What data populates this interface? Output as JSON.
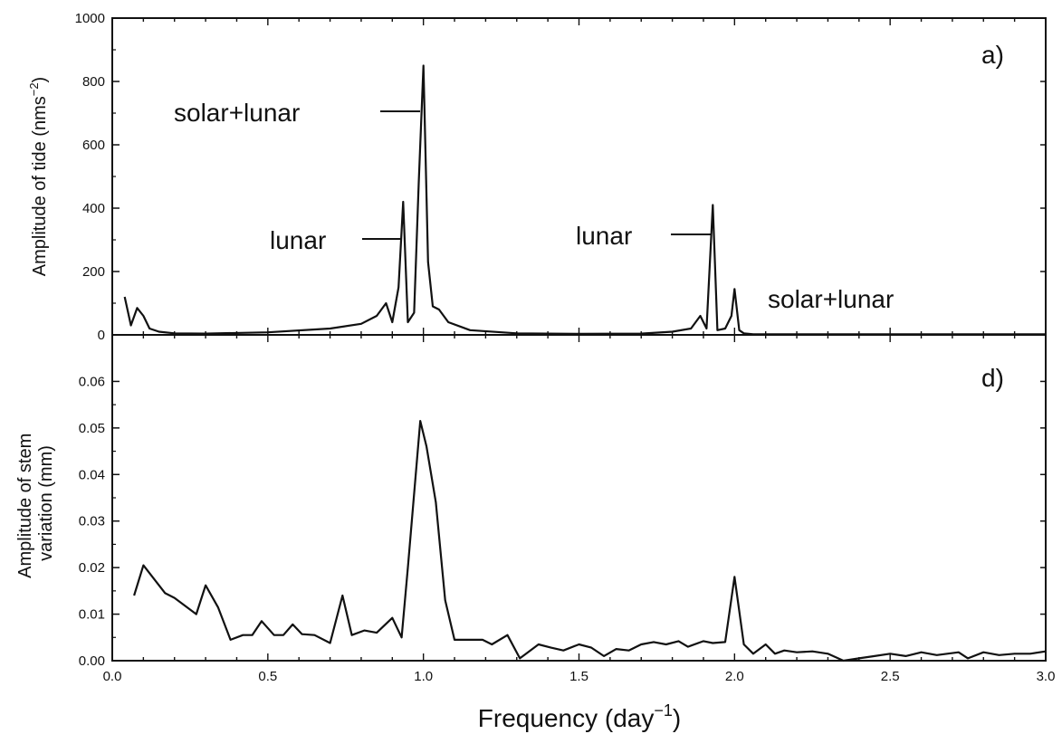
{
  "chart_data": {
    "type": "line",
    "shared_x": {
      "label_main": "Frequency (day",
      "label_sup": "−1",
      "label_close": ")",
      "range": [
        0,
        3.0
      ],
      "ticks": [
        0.0,
        0.5,
        1.0,
        1.5,
        2.0,
        2.5,
        3.0
      ],
      "tick_labels": [
        "0.0",
        "0.5",
        "1.0",
        "1.5",
        "2.0",
        "2.5",
        "3.0"
      ]
    },
    "panels": [
      {
        "id": "a",
        "tag": "a)",
        "ylabel_main": "Amplitude of tide (nms",
        "ylabel_sup": "−2",
        "ylabel_close": ")",
        "ylim": [
          0,
          1000
        ],
        "yticks": [
          0,
          200,
          400,
          600,
          800,
          1000
        ],
        "ytick_labels": [
          "0",
          "200",
          "400",
          "600",
          "800",
          "1000"
        ],
        "x": [
          0.04,
          0.06,
          0.08,
          0.1,
          0.12,
          0.15,
          0.2,
          0.3,
          0.5,
          0.7,
          0.8,
          0.85,
          0.88,
          0.9,
          0.92,
          0.935,
          0.95,
          0.97,
          0.985,
          1.0,
          1.015,
          1.03,
          1.05,
          1.08,
          1.15,
          1.3,
          1.5,
          1.7,
          1.8,
          1.86,
          1.89,
          1.91,
          1.93,
          1.945,
          1.97,
          1.99,
          2.0,
          2.015,
          2.03,
          2.06,
          2.2,
          2.6,
          3.0
        ],
        "values": [
          120,
          30,
          85,
          60,
          20,
          10,
          5,
          4,
          8,
          20,
          35,
          60,
          100,
          40,
          150,
          420,
          40,
          70,
          480,
          850,
          230,
          90,
          80,
          40,
          15,
          5,
          3,
          4,
          10,
          20,
          60,
          20,
          410,
          15,
          20,
          60,
          145,
          15,
          5,
          2,
          2,
          2,
          2
        ],
        "annotations": [
          {
            "text": "solar+lunar"
          },
          {
            "text": "lunar"
          },
          {
            "text": "lunar"
          },
          {
            "text": "solar+lunar"
          }
        ]
      },
      {
        "id": "d",
        "tag": "d)",
        "ylabel_line1": "Amplitude of stem",
        "ylabel_line2": "variation (mm)",
        "ylim": [
          0,
          0.07
        ],
        "yticks": [
          0.0,
          0.01,
          0.02,
          0.03,
          0.04,
          0.05,
          0.06
        ],
        "ytick_labels": [
          "0.00",
          "0.01",
          "0.02",
          "0.03",
          "0.04",
          "0.05",
          "0.06"
        ],
        "x": [
          0.07,
          0.1,
          0.17,
          0.2,
          0.27,
          0.3,
          0.34,
          0.38,
          0.42,
          0.45,
          0.48,
          0.52,
          0.55,
          0.58,
          0.61,
          0.65,
          0.7,
          0.74,
          0.77,
          0.81,
          0.85,
          0.9,
          0.93,
          0.95,
          0.99,
          1.01,
          1.04,
          1.07,
          1.1,
          1.14,
          1.19,
          1.22,
          1.27,
          1.31,
          1.33,
          1.37,
          1.41,
          1.45,
          1.5,
          1.54,
          1.58,
          1.62,
          1.66,
          1.7,
          1.74,
          1.78,
          1.82,
          1.85,
          1.9,
          1.93,
          1.97,
          2.0,
          2.03,
          2.06,
          2.1,
          2.13,
          2.16,
          2.2,
          2.25,
          2.3,
          2.35,
          2.4,
          2.45,
          2.5,
          2.55,
          2.6,
          2.65,
          2.72,
          2.75,
          2.8,
          2.85,
          2.9,
          2.95,
          3.0
        ],
        "values": [
          0.014,
          0.0205,
          0.0145,
          0.0135,
          0.01,
          0.0162,
          0.0115,
          0.0045,
          0.0055,
          0.0055,
          0.0085,
          0.0055,
          0.0055,
          0.0078,
          0.0057,
          0.0055,
          0.0038,
          0.014,
          0.0055,
          0.0065,
          0.006,
          0.0092,
          0.005,
          0.02,
          0.0515,
          0.046,
          0.034,
          0.013,
          0.0045,
          0.0045,
          0.0045,
          0.0035,
          0.0055,
          0.0005,
          0.0015,
          0.0035,
          0.0028,
          0.0022,
          0.0035,
          0.0028,
          0.001,
          0.0025,
          0.0022,
          0.0035,
          0.004,
          0.0035,
          0.0042,
          0.003,
          0.0042,
          0.0038,
          0.004,
          0.018,
          0.0035,
          0.0015,
          0.0035,
          0.0015,
          0.0022,
          0.0018,
          0.002,
          0.0015,
          0.0,
          0.0005,
          0.001,
          0.0015,
          0.001,
          0.0018,
          0.0012,
          0.0018,
          0.0005,
          0.0018,
          0.0012,
          0.0015,
          0.0015,
          0.002
        ]
      }
    ]
  }
}
